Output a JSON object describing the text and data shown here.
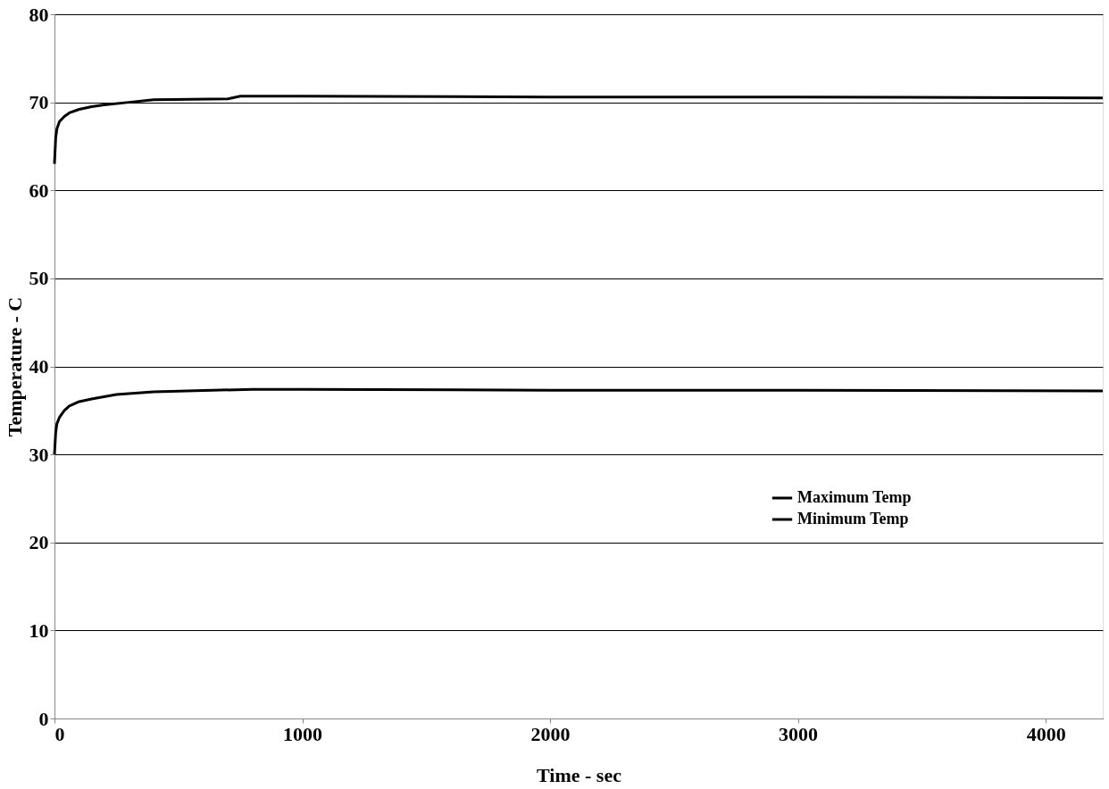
{
  "chart_data": {
    "type": "line",
    "xlabel": "Time - sec",
    "ylabel": "Temperature - C",
    "xlim": [
      0,
      4230
    ],
    "xticks": [
      0,
      1000,
      2000,
      3000,
      4000
    ],
    "ylim": [
      0,
      80
    ],
    "yticks": [
      0,
      10,
      20,
      30,
      40,
      50,
      60,
      70,
      80
    ],
    "grid": "y",
    "legend": "bottom right",
    "marker": "none",
    "line_style": "solid",
    "series": [
      {
        "name": "Maximum Temp",
        "color": "#000000",
        "x": [
          0,
          5,
          10,
          20,
          40,
          60,
          100,
          150,
          200,
          300,
          400,
          700,
          750,
          1000,
          2000,
          3000,
          4230
        ],
        "values": [
          63,
          66,
          67,
          67.8,
          68.4,
          68.8,
          69.2,
          69.5,
          69.7,
          70.0,
          70.3,
          70.4,
          70.7,
          70.7,
          70.6,
          70.6,
          70.5
        ]
      },
      {
        "name": "Minimum Temp",
        "color": "#000000",
        "x": [
          0,
          5,
          10,
          20,
          40,
          60,
          100,
          150,
          250,
          400,
          800,
          1000,
          2000,
          3000,
          4230
        ],
        "values": [
          30,
          32.5,
          33.5,
          34.2,
          35.0,
          35.5,
          36.0,
          36.3,
          36.8,
          37.1,
          37.4,
          37.4,
          37.3,
          37.3,
          37.2
        ]
      }
    ]
  }
}
